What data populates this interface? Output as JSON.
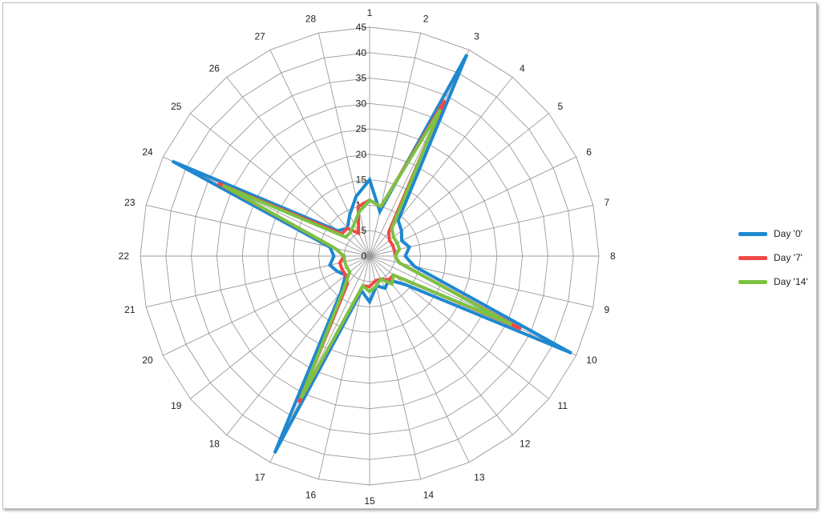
{
  "chart_data": {
    "type": "radar",
    "categories": [
      "1",
      "2",
      "3",
      "4",
      "5",
      "6",
      "7",
      "8",
      "9",
      "10",
      "11",
      "12",
      "13",
      "14",
      "15",
      "16",
      "17",
      "18",
      "19",
      "20",
      "21",
      "22",
      "23",
      "24",
      "25",
      "26",
      "27",
      "28"
    ],
    "rlim": [
      0,
      45
    ],
    "radial_ticks": [
      "0",
      "5",
      "10",
      "15",
      "20",
      "25",
      "30",
      "35",
      "40",
      "45"
    ],
    "grid": true,
    "legend_position": "right",
    "series": [
      {
        "name": "Day '0'",
        "color": "#1e88d0",
        "values": [
          15,
          9,
          44,
          9,
          8,
          7,
          8,
          7,
          9,
          44,
          9,
          6,
          7,
          6,
          9,
          7,
          43,
          9,
          6,
          7,
          8,
          7,
          8,
          43,
          8,
          7,
          9,
          12
        ]
      },
      {
        "name": "Day '7'",
        "color": "#f04848",
        "values": [
          11,
          10,
          34,
          6,
          5,
          5,
          5,
          5,
          6,
          33,
          6,
          6,
          5,
          5,
          6,
          6,
          32,
          7,
          6,
          6,
          6,
          5,
          7,
          33,
          7,
          7,
          5,
          10
        ]
      },
      {
        "name": "Day '14'",
        "color": "#7cc242",
        "values": [
          11,
          10,
          32,
          7,
          6,
          6,
          6,
          5,
          6,
          31,
          6,
          7,
          5,
          6,
          7,
          6,
          31,
          8,
          5,
          5,
          5,
          5,
          7,
          32,
          6,
          6,
          7,
          9
        ]
      }
    ]
  }
}
